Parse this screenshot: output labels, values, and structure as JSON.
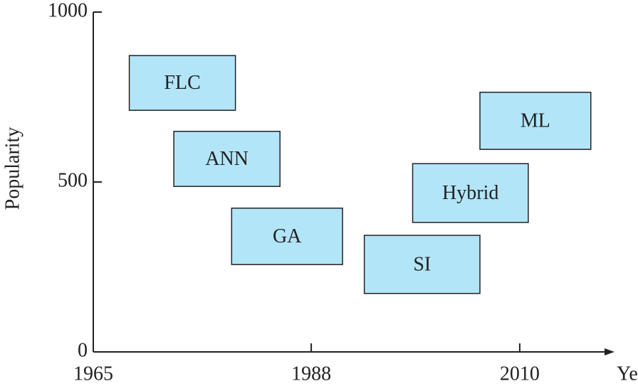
{
  "chart_data": {
    "type": "range-box",
    "x_label": "Year",
    "y_label": "Popularity",
    "xlim": [
      1965,
      2020
    ],
    "xticks": [
      1965,
      1988,
      2010
    ],
    "ylim": [
      0,
      1000
    ],
    "yticks": [
      0,
      500,
      1000
    ],
    "color": "#b3e5f8",
    "edge_color": "#222222",
    "series": [
      {
        "name": "FLC",
        "x": [
          1968.8,
          1980
        ],
        "y": [
          711,
          872
        ]
      },
      {
        "name": "ANN",
        "x": [
          1973.5,
          1984.7
        ],
        "y": [
          487,
          649
        ]
      },
      {
        "name": "GA",
        "x": [
          1979.6,
          1991.3
        ],
        "y": [
          257,
          423
        ]
      },
      {
        "name": "SI",
        "x": [
          1993.6,
          2005.8
        ],
        "y": [
          172,
          343
        ]
      },
      {
        "name": "Hybrid",
        "x": [
          1998.7,
          2010.9
        ],
        "y": [
          381,
          554
        ]
      },
      {
        "name": "ML",
        "x": [
          2005.8,
          2017.5
        ],
        "y": [
          596,
          764
        ]
      }
    ]
  }
}
